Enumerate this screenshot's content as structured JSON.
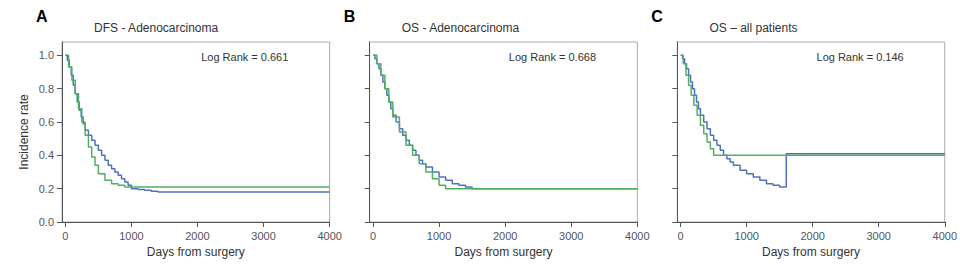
{
  "chart_data": [
    {
      "type": "step",
      "panel_label": "A",
      "title": "DFS - Adenocarcinoma",
      "annotation": "Log Rank = 0.661",
      "xlabel": "Days from surgery",
      "ylabel": "Incidence rate",
      "xlim": [
        -50,
        4000
      ],
      "ylim": [
        0,
        1.08
      ],
      "xticks": [
        0,
        1000,
        2000,
        3000,
        4000
      ],
      "yticks": [
        {
          "value": 0,
          "label": "0.0"
        },
        0.2,
        0.4,
        0.6,
        0.8,
        {
          "value": 1,
          "label": "1.0"
        }
      ],
      "grid": false,
      "series": [
        {
          "color": "#5070c0",
          "x": [
            0,
            30,
            60,
            90,
            120,
            150,
            180,
            210,
            240,
            270,
            300,
            350,
            400,
            450,
            500,
            550,
            600,
            650,
            700,
            750,
            800,
            850,
            900,
            950,
            1000,
            1100,
            1200,
            1300,
            1400,
            1500,
            1600,
            1700,
            1800,
            1900,
            2000,
            2500,
            3000,
            3500,
            4000
          ],
          "values": [
            1.0,
            0.97,
            0.93,
            0.88,
            0.82,
            0.77,
            0.72,
            0.67,
            0.63,
            0.59,
            0.55,
            0.52,
            0.49,
            0.46,
            0.43,
            0.4,
            0.37,
            0.34,
            0.32,
            0.3,
            0.28,
            0.26,
            0.24,
            0.22,
            0.2,
            0.195,
            0.19,
            0.185,
            0.18,
            0.18,
            0.18,
            0.18,
            0.18,
            0.18,
            0.18,
            0.18,
            0.18,
            0.18,
            0.18
          ]
        },
        {
          "color": "#50b060",
          "x": [
            0,
            50,
            100,
            150,
            200,
            250,
            300,
            350,
            400,
            450,
            500,
            600,
            700,
            800,
            900,
            1000,
            1100,
            1200,
            1300,
            1500,
            2000,
            2500,
            3000,
            3500,
            4000
          ],
          "values": [
            1.0,
            0.93,
            0.85,
            0.77,
            0.68,
            0.6,
            0.52,
            0.45,
            0.39,
            0.34,
            0.29,
            0.25,
            0.23,
            0.22,
            0.21,
            0.21,
            0.21,
            0.21,
            0.21,
            0.21,
            0.21,
            0.21,
            0.21,
            0.21,
            0.21
          ]
        }
      ]
    },
    {
      "type": "step",
      "panel_label": "B",
      "title": "OS - Adenocarcinoma",
      "annotation": "Log Rank = 0.668",
      "xlabel": "Days from surgery",
      "xlim": [
        -50,
        4000
      ],
      "ylim": [
        0,
        1.08
      ],
      "xticks": [
        0,
        1000,
        2000,
        3000,
        4000
      ],
      "yticks": [
        {
          "value": 0,
          "label": "0.0"
        },
        0.2,
        0.4,
        0.6,
        0.8,
        {
          "value": 1,
          "label": "1.0"
        }
      ],
      "tick_labels": "x",
      "grid": false,
      "series": [
        {
          "color": "#5070c0",
          "x": [
            0,
            30,
            60,
            90,
            120,
            150,
            180,
            210,
            240,
            270,
            300,
            350,
            400,
            450,
            500,
            550,
            600,
            650,
            700,
            750,
            800,
            900,
            1000,
            1100,
            1200,
            1300,
            1400,
            1500,
            1600,
            1700,
            1800,
            2000,
            2200,
            2400,
            2600,
            2800,
            3000,
            3200,
            3400,
            4000
          ],
          "values": [
            1.0,
            0.98,
            0.95,
            0.92,
            0.88,
            0.84,
            0.8,
            0.76,
            0.72,
            0.68,
            0.64,
            0.6,
            0.56,
            0.52,
            0.49,
            0.46,
            0.43,
            0.4,
            0.37,
            0.35,
            0.33,
            0.3,
            0.27,
            0.25,
            0.23,
            0.22,
            0.21,
            0.2,
            0.2,
            0.2,
            0.2,
            0.2,
            0.2,
            0.2,
            0.2,
            0.2,
            0.2,
            0.2,
            0.2,
            0.2
          ]
        },
        {
          "color": "#50b060",
          "x": [
            0,
            60,
            120,
            180,
            240,
            300,
            400,
            500,
            600,
            700,
            800,
            900,
            1000,
            1100,
            1200,
            1400,
            1600,
            1800,
            2000,
            2200,
            2500,
            3000,
            3400,
            4000
          ],
          "values": [
            1.0,
            0.95,
            0.88,
            0.8,
            0.72,
            0.63,
            0.54,
            0.46,
            0.4,
            0.35,
            0.3,
            0.26,
            0.22,
            0.2,
            0.2,
            0.2,
            0.2,
            0.2,
            0.2,
            0.2,
            0.2,
            0.2,
            0.2,
            0.2
          ]
        }
      ]
    },
    {
      "type": "step",
      "panel_label": "C",
      "title": "OS – all patients",
      "annotation": "Log Rank = 0.146",
      "xlabel": "Days from surgery",
      "xlim": [
        -50,
        4000
      ],
      "ylim": [
        0,
        1.08
      ],
      "xticks": [
        0,
        1000,
        2000,
        3000,
        4000
      ],
      "yticks": [
        {
          "value": 0,
          "label": "0.0"
        },
        0.2,
        0.4,
        0.6,
        0.8,
        {
          "value": 1,
          "label": "1.0"
        }
      ],
      "tick_labels": "x",
      "grid": false,
      "series": [
        {
          "color": "#5070c0",
          "x": [
            0,
            30,
            60,
            90,
            120,
            150,
            180,
            210,
            240,
            270,
            300,
            350,
            400,
            450,
            500,
            550,
            600,
            650,
            700,
            750,
            800,
            900,
            1000,
            1100,
            1200,
            1300,
            1400,
            1500,
            1600,
            1700,
            1800,
            2000,
            2200,
            2400,
            2600,
            2800,
            3000,
            3200,
            3400,
            3600,
            4000
          ],
          "values": [
            1.0,
            0.98,
            0.95,
            0.92,
            0.88,
            0.84,
            0.8,
            0.76,
            0.72,
            0.68,
            0.64,
            0.6,
            0.56,
            0.52,
            0.49,
            0.46,
            0.43,
            0.4,
            0.38,
            0.36,
            0.34,
            0.31,
            0.29,
            0.27,
            0.25,
            0.23,
            0.22,
            0.21,
            0.41,
            0.41,
            0.41,
            0.41,
            0.41,
            0.41,
            0.41,
            0.41,
            0.41,
            0.41,
            0.41,
            0.41,
            0.41
          ]
        },
        {
          "color": "#50b060",
          "x": [
            0,
            40,
            80,
            120,
            160,
            200,
            250,
            300,
            350,
            400,
            450,
            500,
            600,
            700,
            800,
            900,
            1000,
            1200,
            1400,
            1600,
            1800,
            2000,
            2500,
            3000,
            4000
          ],
          "values": [
            1.0,
            0.95,
            0.88,
            0.82,
            0.76,
            0.7,
            0.64,
            0.58,
            0.53,
            0.48,
            0.44,
            0.4,
            0.4,
            0.4,
            0.4,
            0.4,
            0.4,
            0.4,
            0.4,
            0.4,
            0.4,
            0.4,
            0.4,
            0.4,
            0.4
          ]
        }
      ]
    }
  ]
}
